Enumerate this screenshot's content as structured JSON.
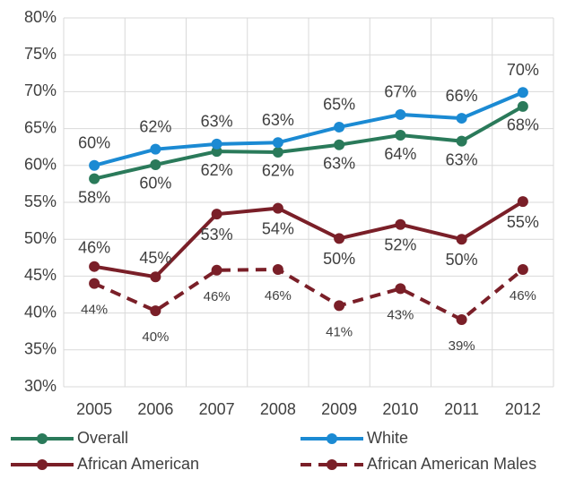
{
  "chart_data": {
    "type": "line",
    "categories": [
      "2005",
      "2006",
      "2007",
      "2008",
      "2009",
      "2010",
      "2011",
      "2012"
    ],
    "series": [
      {
        "name": "Overall",
        "color": "#2a7a5a",
        "line_style": "solid",
        "values": [
          58.2,
          60.1,
          61.9,
          61.8,
          62.8,
          64.1,
          63.3,
          68.0
        ],
        "value_labels": [
          "58%",
          "60%",
          "62%",
          "62%",
          "63%",
          "64%",
          "63%",
          "68%"
        ]
      },
      {
        "name": "White",
        "color": "#1b8ad3",
        "line_style": "solid",
        "values": [
          60.0,
          62.2,
          62.9,
          63.1,
          65.2,
          66.9,
          66.4,
          69.9
        ],
        "value_labels": [
          "60%",
          "62%",
          "63%",
          "63%",
          "65%",
          "67%",
          "66%",
          "70%"
        ]
      },
      {
        "name": "African American",
        "color": "#7a1f28",
        "line_style": "solid",
        "values": [
          46.3,
          44.9,
          53.4,
          54.2,
          50.1,
          52.0,
          50.0,
          55.1
        ],
        "value_labels": [
          "46%",
          "45%",
          "53%",
          "54%",
          "50%",
          "52%",
          "50%",
          "55%"
        ]
      },
      {
        "name": "African American Males",
        "color": "#7a1f28",
        "line_style": "dashed",
        "values": [
          44.0,
          40.3,
          45.8,
          45.9,
          41.0,
          43.3,
          39.1,
          45.9
        ],
        "value_labels": [
          "44%",
          "40%",
          "46%",
          "46%",
          "41%",
          "43%",
          "39%",
          "46%"
        ]
      }
    ],
    "ylim": [
      30,
      80
    ],
    "yticks": [
      {
        "value": 30,
        "label": "30%"
      },
      {
        "value": 35,
        "label": "35%"
      },
      {
        "value": 40,
        "label": "40%"
      },
      {
        "value": 45,
        "label": "45%"
      },
      {
        "value": 50,
        "label": "50%"
      },
      {
        "value": 55,
        "label": "55%"
      },
      {
        "value": 60,
        "label": "60%"
      },
      {
        "value": 65,
        "label": "65%"
      },
      {
        "value": 70,
        "label": "70%"
      },
      {
        "value": 75,
        "label": "75%"
      },
      {
        "value": 80,
        "label": "80%"
      }
    ],
    "grid": true
  }
}
